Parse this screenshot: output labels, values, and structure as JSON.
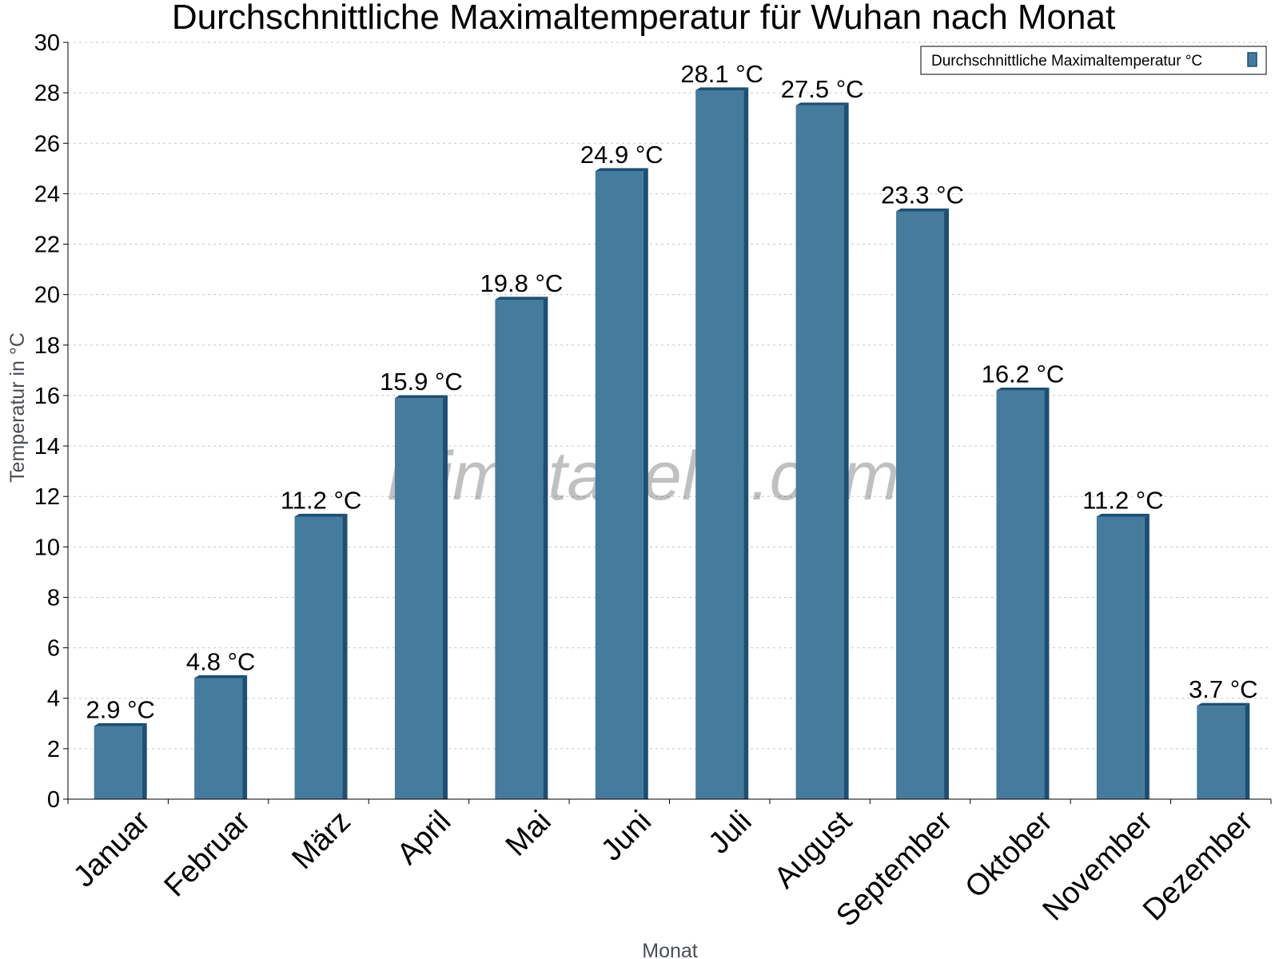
{
  "chart_data": {
    "type": "bar",
    "title": "Durchschnittliche Maximaltemperatur für Wuhan nach Monat",
    "xlabel": "Monat",
    "ylabel": "Temperatur in °C",
    "ylim": [
      0,
      30
    ],
    "ytick_step": 2,
    "grid": true,
    "legend_position": "top-right",
    "categories": [
      "Januar",
      "Februar",
      "März",
      "April",
      "Mai",
      "Juni",
      "Juli",
      "August",
      "September",
      "Oktober",
      "November",
      "Dezember"
    ],
    "series": [
      {
        "name": "Durchschnittliche Maximaltemperatur °C",
        "values": [
          2.9,
          4.8,
          11.2,
          15.9,
          19.8,
          24.9,
          28.1,
          27.5,
          23.3,
          16.2,
          11.2,
          3.7
        ],
        "labels": [
          "2.9 °C",
          "4.8 °C",
          "11.2 °C",
          "15.9 °C",
          "19.8 °C",
          "24.9 °C",
          "28.1 °C",
          "27.5 °C",
          "23.3 °C",
          "16.2 °C",
          "11.2 °C",
          "3.7 °C"
        ],
        "color": "#457b9d",
        "edge_color": "#1d4f72"
      }
    ],
    "watermark": "klimatabelle.com"
  }
}
